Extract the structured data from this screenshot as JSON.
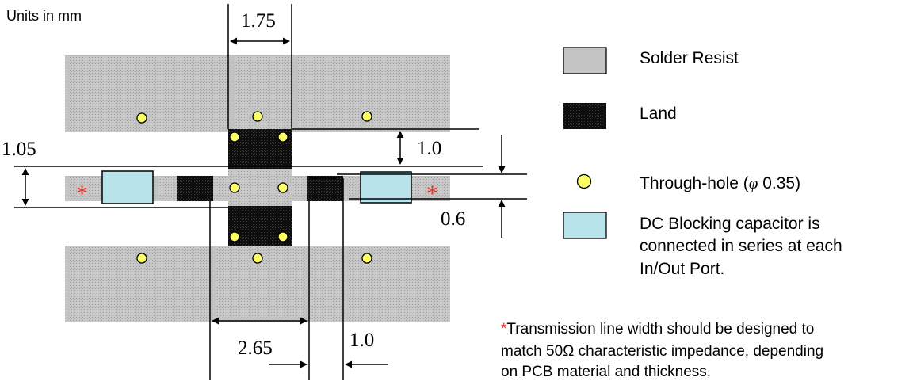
{
  "units_label": "Units in mm",
  "dimensions": {
    "top_land_width": "1.75",
    "land_gap": "1.0",
    "line_width": "1.05",
    "right_line_width": "0.6",
    "left_pad_span": "2.65",
    "right_pad_gap": "1.0"
  },
  "legend": {
    "solder_resist": "Solder Resist",
    "land": "Land",
    "through_hole_prefix": "Through-hole (",
    "through_hole_phi": "φ",
    "through_hole_size": " 0.35)",
    "capacitor_line1": "DC Blocking capacitor is",
    "capacitor_line2": "connected in series at each",
    "capacitor_line3": "In/Out Port."
  },
  "note": {
    "asterisk": "*",
    "line1": "Transmission line width should be designed to",
    "line2": "match 50Ω characteristic impedance, depending",
    "line3": "on PCB material and thickness."
  },
  "colors": {
    "solder_resist": "#c4c4c4",
    "land": "#111111",
    "through_hole": "#ffff66",
    "capacitor": "#b9e3ea",
    "asterisk": "#e8312b"
  }
}
